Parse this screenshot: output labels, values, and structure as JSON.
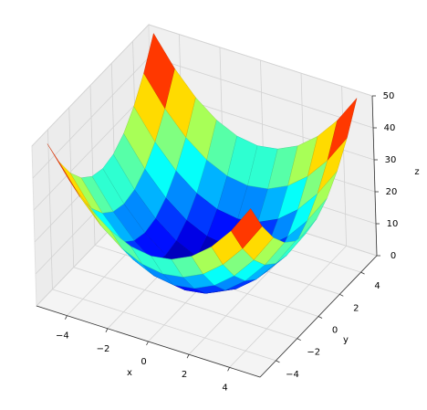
{
  "chart_data": {
    "type": "surface",
    "colormap": "jet",
    "x_label": "x",
    "y_label": "y",
    "z_label": "z",
    "x": [
      -5,
      -4,
      -3,
      -2,
      -1,
      0,
      1,
      2,
      3,
      4,
      5
    ],
    "y": [
      -5,
      -4,
      -3,
      -2,
      -1,
      0,
      1,
      2,
      3,
      4,
      5
    ],
    "z": [
      [
        50,
        41,
        34,
        29,
        26,
        25,
        26,
        29,
        34,
        41,
        50
      ],
      [
        41,
        32,
        25,
        20,
        17,
        16,
        17,
        20,
        25,
        32,
        41
      ],
      [
        34,
        25,
        18,
        13,
        10,
        9,
        10,
        13,
        18,
        25,
        34
      ],
      [
        29,
        20,
        13,
        8,
        5,
        4,
        5,
        8,
        13,
        20,
        29
      ],
      [
        26,
        17,
        10,
        5,
        2,
        1,
        2,
        5,
        10,
        17,
        26
      ],
      [
        25,
        16,
        9,
        4,
        1,
        0,
        1,
        4,
        9,
        16,
        25
      ],
      [
        26,
        17,
        10,
        5,
        2,
        1,
        2,
        5,
        10,
        17,
        26
      ],
      [
        29,
        20,
        13,
        8,
        5,
        4,
        5,
        8,
        13,
        20,
        29
      ],
      [
        34,
        25,
        18,
        13,
        10,
        9,
        10,
        13,
        18,
        25,
        34
      ],
      [
        41,
        32,
        25,
        20,
        17,
        16,
        17,
        20,
        25,
        32,
        41
      ],
      [
        50,
        41,
        34,
        29,
        26,
        25,
        26,
        29,
        34,
        41,
        50
      ]
    ],
    "xlim": [
      -5.5,
      5.5
    ],
    "ylim": [
      -5.5,
      5.5
    ],
    "zlim": [
      0,
      50
    ],
    "xticks": [
      {
        "value": -4,
        "label": "−4"
      },
      {
        "value": -2,
        "label": "−2"
      },
      0,
      2,
      4
    ],
    "yticks": [
      {
        "value": -4,
        "label": "−4"
      },
      {
        "value": -2,
        "label": "−2"
      },
      0,
      2,
      4
    ],
    "zticks": [
      0,
      10,
      20,
      30,
      40,
      50
    ],
    "grid": true
  }
}
